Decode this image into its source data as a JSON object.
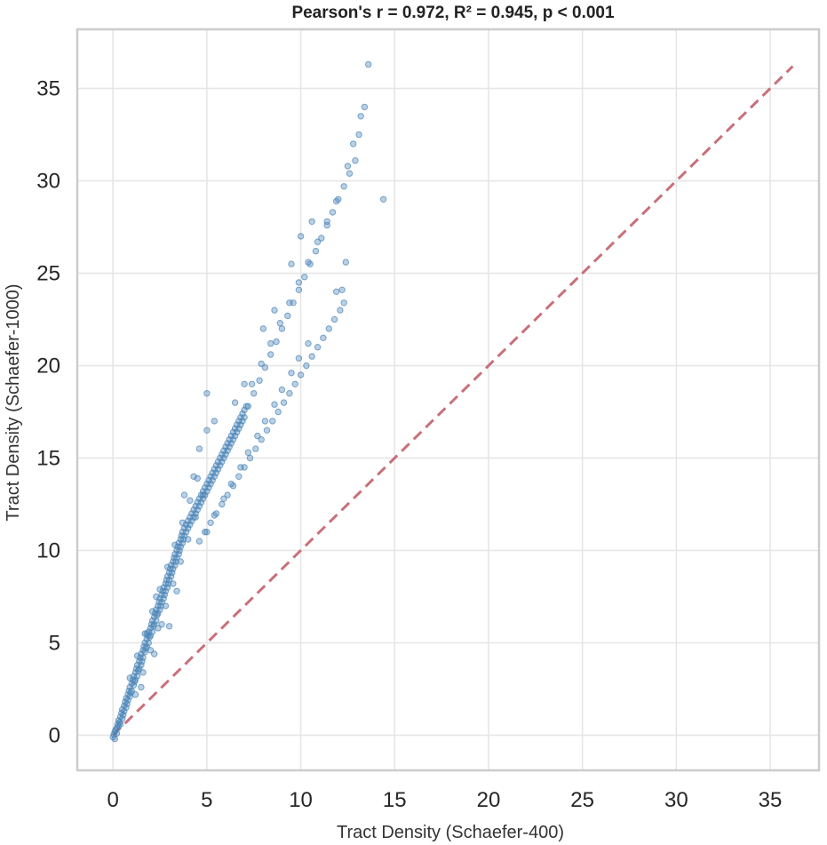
{
  "chart_data": {
    "type": "scatter",
    "title": "Pearson's r = 0.972, R² = 0.945, p < 0.001",
    "xlabel": "Tract Density (Schaefer-400)",
    "ylabel": "Tract Density (Schaefer-1000)",
    "xlim": [
      -1.9,
      37.6
    ],
    "ylim": [
      -1.9,
      38.2
    ],
    "xticks": [
      0,
      5,
      10,
      15,
      20,
      25,
      30,
      35
    ],
    "yticks": [
      0,
      5,
      10,
      15,
      20,
      25,
      30,
      35
    ],
    "grid": true,
    "reference_line": {
      "style": "dashed",
      "color": "#c8707a",
      "from": [
        0,
        0
      ],
      "to": [
        36.2,
        36.2
      ]
    },
    "series_color": "#4a84b7",
    "points": [
      [
        0,
        -0.1
      ],
      [
        0.05,
        0.05
      ],
      [
        0.1,
        0.2
      ],
      [
        0.1,
        -0.2
      ],
      [
        0.15,
        0.3
      ],
      [
        0.2,
        0.4
      ],
      [
        0.2,
        0.1
      ],
      [
        0.25,
        0.6
      ],
      [
        0.3,
        0.5
      ],
      [
        0.3,
        0.8
      ],
      [
        0.35,
        0.7
      ],
      [
        0.4,
        1.0
      ],
      [
        0.4,
        0.6
      ],
      [
        0.45,
        1.2
      ],
      [
        0.5,
        0.9
      ],
      [
        0.5,
        1.4
      ],
      [
        0.55,
        1.1
      ],
      [
        0.6,
        1.6
      ],
      [
        0.6,
        1.3
      ],
      [
        0.65,
        1.8
      ],
      [
        0.7,
        1.5
      ],
      [
        0.7,
        2.0
      ],
      [
        0.75,
        1.7
      ],
      [
        0.8,
        2.2
      ],
      [
        0.8,
        1.9
      ],
      [
        0.85,
        2.4
      ],
      [
        0.9,
        2.1
      ],
      [
        0.9,
        2.6
      ],
      [
        0.95,
        2.3
      ],
      [
        1.0,
        2.8
      ],
      [
        1.0,
        2.4
      ],
      [
        1.05,
        3.0
      ],
      [
        1.1,
        2.7
      ],
      [
        1.1,
        3.2
      ],
      [
        1.15,
        2.9
      ],
      [
        1.2,
        3.4
      ],
      [
        1.2,
        3.0
      ],
      [
        1.25,
        3.6
      ],
      [
        1.3,
        3.2
      ],
      [
        1.3,
        3.8
      ],
      [
        1.35,
        3.5
      ],
      [
        1.4,
        4.0
      ],
      [
        1.4,
        3.6
      ],
      [
        1.45,
        4.2
      ],
      [
        1.5,
        3.8
      ],
      [
        1.5,
        4.4
      ],
      [
        1.55,
        4.0
      ],
      [
        1.6,
        4.6
      ],
      [
        1.6,
        4.2
      ],
      [
        1.65,
        4.8
      ],
      [
        1.7,
        4.5
      ],
      [
        1.7,
        5.0
      ],
      [
        1.75,
        4.7
      ],
      [
        1.8,
        5.2
      ],
      [
        1.8,
        4.8
      ],
      [
        1.85,
        5.4
      ],
      [
        1.9,
        5.0
      ],
      [
        1.9,
        5.6
      ],
      [
        1.95,
        5.3
      ],
      [
        2.0,
        5.8
      ],
      [
        2.0,
        5.4
      ],
      [
        2.05,
        6.0
      ],
      [
        2.1,
        5.6
      ],
      [
        2.1,
        6.2
      ],
      [
        2.15,
        5.9
      ],
      [
        2.2,
        6.4
      ],
      [
        2.2,
        6.0
      ],
      [
        2.25,
        6.6
      ],
      [
        2.3,
        6.2
      ],
      [
        2.3,
        6.8
      ],
      [
        2.35,
        6.5
      ],
      [
        2.4,
        7.0
      ],
      [
        2.4,
        6.6
      ],
      [
        2.45,
        7.2
      ],
      [
        2.5,
        6.8
      ],
      [
        2.5,
        7.4
      ],
      [
        2.55,
        7.0
      ],
      [
        2.6,
        7.6
      ],
      [
        2.6,
        7.2
      ],
      [
        2.65,
        7.8
      ],
      [
        2.7,
        7.4
      ],
      [
        2.7,
        8.0
      ],
      [
        2.75,
        7.6
      ],
      [
        2.8,
        8.2
      ],
      [
        2.8,
        7.8
      ],
      [
        2.85,
        8.4
      ],
      [
        2.9,
        8.0
      ],
      [
        2.9,
        8.6
      ],
      [
        2.95,
        8.2
      ],
      [
        3.0,
        8.8
      ],
      [
        3.0,
        8.4
      ],
      [
        3.05,
        9.0
      ],
      [
        3.1,
        8.6
      ],
      [
        3.1,
        9.2
      ],
      [
        3.15,
        8.8
      ],
      [
        3.2,
        9.4
      ],
      [
        3.2,
        9.0
      ],
      [
        3.25,
        9.6
      ],
      [
        3.3,
        9.2
      ],
      [
        3.3,
        9.8
      ],
      [
        3.35,
        9.4
      ],
      [
        3.4,
        10.0
      ],
      [
        3.4,
        9.6
      ],
      [
        3.45,
        10.2
      ],
      [
        3.5,
        9.8
      ],
      [
        3.5,
        10.4
      ],
      [
        3.55,
        10.0
      ],
      [
        3.6,
        10.6
      ],
      [
        3.6,
        10.2
      ],
      [
        3.65,
        10.8
      ],
      [
        3.7,
        10.4
      ],
      [
        3.7,
        11.0
      ],
      [
        3.75,
        10.6
      ],
      [
        3.8,
        11.2
      ],
      [
        3.8,
        10.8
      ],
      [
        3.9,
        11.4
      ],
      [
        3.9,
        11.0
      ],
      [
        4.0,
        11.6
      ],
      [
        4.0,
        11.2
      ],
      [
        4.1,
        11.8
      ],
      [
        4.1,
        11.4
      ],
      [
        4.2,
        12.0
      ],
      [
        4.2,
        11.6
      ],
      [
        4.3,
        12.2
      ],
      [
        4.3,
        11.8
      ],
      [
        4.4,
        12.4
      ],
      [
        4.4,
        12.0
      ],
      [
        4.5,
        12.6
      ],
      [
        4.5,
        12.2
      ],
      [
        4.6,
        12.8
      ],
      [
        4.6,
        12.4
      ],
      [
        4.7,
        13.0
      ],
      [
        4.7,
        12.6
      ],
      [
        4.8,
        13.2
      ],
      [
        4.8,
        12.8
      ],
      [
        4.9,
        13.4
      ],
      [
        4.9,
        13.0
      ],
      [
        5.0,
        13.6
      ],
      [
        5.0,
        13.2
      ],
      [
        5.1,
        13.8
      ],
      [
        5.1,
        13.4
      ],
      [
        5.2,
        14.0
      ],
      [
        5.2,
        13.6
      ],
      [
        5.3,
        14.2
      ],
      [
        5.3,
        13.8
      ],
      [
        5.4,
        14.4
      ],
      [
        5.4,
        14.0
      ],
      [
        5.5,
        14.6
      ],
      [
        5.5,
        14.2
      ],
      [
        5.6,
        14.8
      ],
      [
        5.6,
        14.4
      ],
      [
        5.7,
        15.0
      ],
      [
        5.7,
        14.6
      ],
      [
        5.8,
        15.2
      ],
      [
        5.8,
        14.8
      ],
      [
        5.9,
        15.4
      ],
      [
        5.9,
        15.0
      ],
      [
        6.0,
        15.6
      ],
      [
        6.0,
        15.2
      ],
      [
        6.1,
        15.8
      ],
      [
        6.1,
        15.4
      ],
      [
        6.2,
        16.0
      ],
      [
        6.2,
        15.6
      ],
      [
        6.3,
        16.2
      ],
      [
        6.3,
        15.8
      ],
      [
        6.4,
        16.4
      ],
      [
        6.4,
        16.0
      ],
      [
        6.5,
        16.6
      ],
      [
        6.5,
        16.2
      ],
      [
        6.6,
        16.8
      ],
      [
        6.6,
        16.4
      ],
      [
        6.7,
        17.0
      ],
      [
        6.7,
        16.6
      ],
      [
        6.8,
        17.2
      ],
      [
        6.8,
        16.8
      ],
      [
        6.9,
        17.4
      ],
      [
        6.9,
        17.0
      ],
      [
        7.0,
        17.6
      ],
      [
        7.0,
        17.2
      ],
      [
        7.1,
        17.8
      ],
      [
        1.2,
        2.2
      ],
      [
        1.6,
        3.4
      ],
      [
        2.0,
        4.6
      ],
      [
        2.4,
        5.8
      ],
      [
        2.8,
        7.0
      ],
      [
        3.2,
        8.2
      ],
      [
        3.6,
        9.4
      ],
      [
        4.0,
        10.6
      ],
      [
        4.4,
        11.8
      ],
      [
        4.8,
        13.0
      ],
      [
        0.9,
        3.1
      ],
      [
        1.3,
        4.3
      ],
      [
        1.7,
        5.5
      ],
      [
        2.1,
        6.7
      ],
      [
        2.5,
        7.9
      ],
      [
        2.9,
        9.1
      ],
      [
        3.3,
        10.3
      ],
      [
        3.7,
        11.5
      ],
      [
        4.1,
        12.7
      ],
      [
        4.5,
        13.9
      ],
      [
        4.6,
        10.5
      ],
      [
        4.9,
        11.0
      ],
      [
        5.2,
        11.5
      ],
      [
        5.5,
        12.0
      ],
      [
        5.8,
        12.5
      ],
      [
        6.1,
        13.0
      ],
      [
        6.4,
        13.5
      ],
      [
        6.7,
        14.0
      ],
      [
        7.0,
        14.5
      ],
      [
        7.3,
        15.0
      ],
      [
        7.6,
        15.5
      ],
      [
        7.9,
        16.0
      ],
      [
        8.2,
        16.5
      ],
      [
        8.5,
        17.0
      ],
      [
        8.8,
        17.5
      ],
      [
        9.1,
        18.0
      ],
      [
        9.4,
        18.5
      ],
      [
        9.7,
        19.0
      ],
      [
        10.0,
        19.5
      ],
      [
        10.3,
        20.0
      ],
      [
        10.6,
        20.5
      ],
      [
        10.9,
        21.0
      ],
      [
        11.2,
        21.5
      ],
      [
        11.5,
        22.0
      ],
      [
        11.8,
        22.5
      ],
      [
        12.1,
        23.0
      ],
      [
        12.3,
        23.4
      ],
      [
        5.0,
        11.0
      ],
      [
        5.4,
        11.9
      ],
      [
        5.9,
        12.8
      ],
      [
        6.3,
        13.6
      ],
      [
        6.8,
        14.5
      ],
      [
        7.2,
        15.3
      ],
      [
        7.7,
        16.2
      ],
      [
        8.1,
        17.0
      ],
      [
        8.6,
        17.9
      ],
      [
        9.0,
        18.7
      ],
      [
        9.5,
        19.6
      ],
      [
        9.9,
        20.4
      ],
      [
        10.4,
        21.2
      ],
      [
        7.2,
        17.8
      ],
      [
        7.5,
        18.5
      ],
      [
        7.8,
        19.2
      ],
      [
        8.1,
        19.9
      ],
      [
        8.4,
        20.6
      ],
      [
        8.7,
        21.3
      ],
      [
        9.0,
        22.0
      ],
      [
        9.3,
        22.7
      ],
      [
        9.6,
        23.4
      ],
      [
        9.9,
        24.1
      ],
      [
        10.2,
        24.8
      ],
      [
        10.5,
        25.5
      ],
      [
        10.8,
        26.2
      ],
      [
        11.1,
        26.9
      ],
      [
        11.4,
        27.6
      ],
      [
        11.7,
        28.3
      ],
      [
        12.0,
        29.0
      ],
      [
        12.3,
        29.7
      ],
      [
        12.6,
        30.4
      ],
      [
        12.9,
        31.1
      ],
      [
        7.4,
        19.0
      ],
      [
        7.9,
        20.1
      ],
      [
        8.4,
        21.2
      ],
      [
        8.9,
        22.3
      ],
      [
        9.4,
        23.4
      ],
      [
        9.9,
        24.5
      ],
      [
        10.4,
        25.6
      ],
      [
        10.9,
        26.7
      ],
      [
        11.4,
        27.8
      ],
      [
        11.9,
        28.9
      ],
      [
        13.2,
        33.5
      ],
      [
        13.4,
        34.0
      ],
      [
        13.6,
        36.3
      ],
      [
        13.1,
        32.5
      ],
      [
        12.8,
        32.0
      ],
      [
        12.5,
        30.8
      ],
      [
        14.4,
        29.0
      ],
      [
        12.4,
        25.6
      ],
      [
        12.2,
        24.1
      ],
      [
        11.9,
        24.0
      ],
      [
        10.6,
        27.8
      ],
      [
        10.0,
        27.0
      ],
      [
        9.5,
        25.5
      ],
      [
        8.6,
        23.0
      ],
      [
        8.0,
        22.0
      ],
      [
        7.0,
        19.0
      ],
      [
        6.5,
        18.0
      ],
      [
        5.4,
        17.0
      ],
      [
        5.0,
        16.5
      ],
      [
        4.6,
        15.5
      ],
      [
        5.0,
        18.5
      ],
      [
        4.3,
        14.0
      ],
      [
        3.8,
        13.0
      ],
      [
        1.8,
        5.5
      ],
      [
        2.3,
        7.5
      ],
      [
        2.6,
        6.0
      ],
      [
        3.4,
        7.8
      ],
      [
        3.0,
        5.9
      ],
      [
        2.2,
        4.4
      ],
      [
        1.5,
        2.6
      ]
    ]
  }
}
